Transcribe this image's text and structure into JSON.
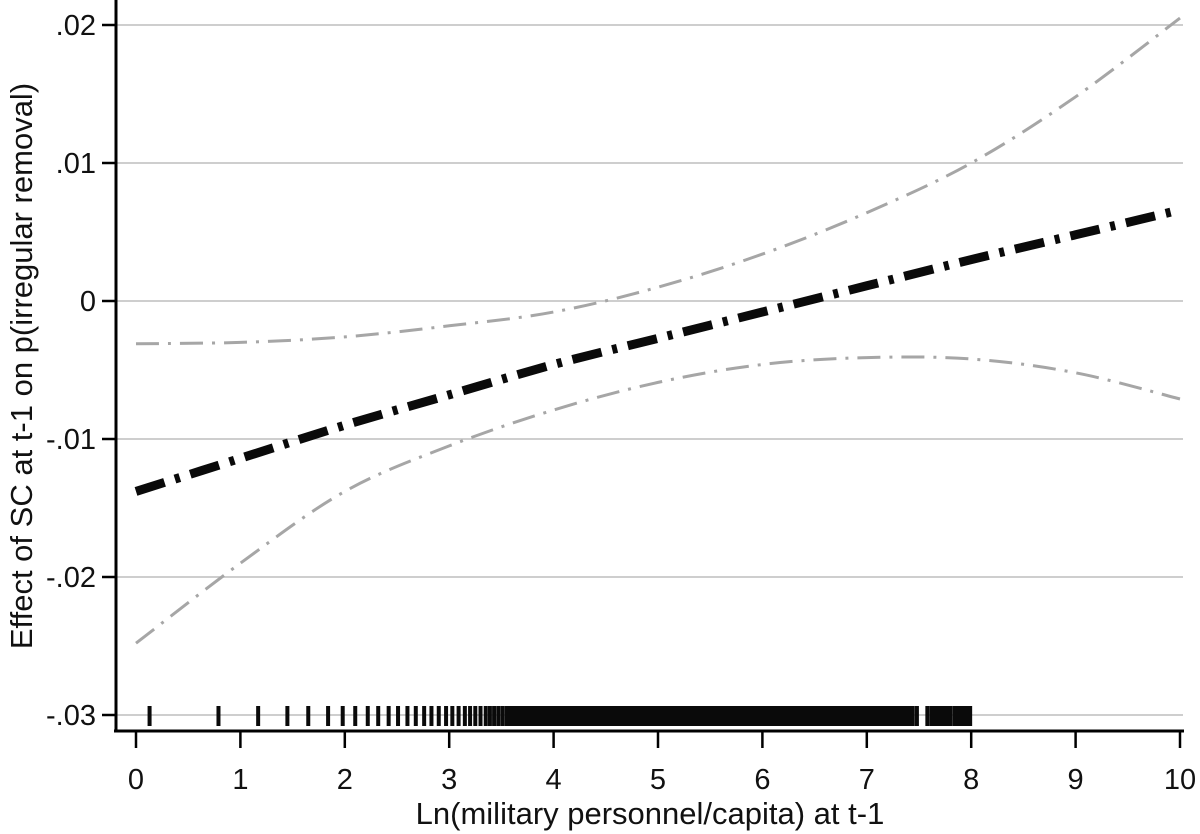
{
  "figure": {
    "background": "#ffffff",
    "axis_color": "#000000",
    "gridline_color": "#bdbdbd",
    "text_color": "#111111"
  },
  "chart_data": {
    "type": "line",
    "title": "",
    "xlabel": "Ln(military personnel/capita) at t-1",
    "ylabel": "Effect of SC at t-1 on p(irregular removal)",
    "xlim": [
      0,
      10
    ],
    "ylim": [
      -0.03,
      0.02
    ],
    "grid": true,
    "legend": "none",
    "x_tick_labels": [
      "0",
      "1",
      "2",
      "3",
      "4",
      "5",
      "6",
      "7",
      "8",
      "9",
      "10"
    ],
    "x_tick_values": [
      0,
      1,
      2,
      3,
      4,
      5,
      6,
      7,
      8,
      9,
      10
    ],
    "y_tick_labels": [
      ".02",
      ".01",
      "0",
      "-.01",
      "-.02",
      "-.03"
    ],
    "y_tick_values": [
      0.02,
      0.01,
      0,
      -0.01,
      -0.02,
      -0.03
    ],
    "x": [
      0,
      1,
      2,
      3,
      4,
      5,
      6,
      7,
      8,
      9,
      10
    ],
    "series": [
      {
        "name": "marginal-effect",
        "style": "thick-dash-dot",
        "color": "#0a0a0a",
        "width": 9,
        "dash": [
          30,
          11,
          5,
          11
        ],
        "values": [
          -0.0138,
          -0.0114,
          -0.009,
          -0.0068,
          -0.0046,
          -0.0027,
          -0.0008,
          0.0011,
          0.003,
          0.0048,
          0.0066
        ]
      },
      {
        "name": "ci-upper",
        "style": "dash-dot",
        "color": "#a6a6a6",
        "width": 3,
        "dash": [
          23,
          9,
          3,
          9
        ],
        "values": [
          -0.0031,
          -0.003,
          -0.0026,
          -0.0018,
          -0.0008,
          0.001,
          0.0034,
          0.0064,
          0.01,
          0.0148,
          0.0205
        ]
      },
      {
        "name": "ci-lower",
        "style": "dash-dot",
        "color": "#a6a6a6",
        "width": 3,
        "dash": [
          23,
          9,
          3,
          9
        ],
        "values": [
          -0.0248,
          -0.019,
          -0.0138,
          -0.0105,
          -0.0079,
          -0.0059,
          -0.0046,
          -0.0041,
          -0.0042,
          -0.0052,
          -0.0071
        ]
      }
    ],
    "rug": {
      "y_value": -0.03,
      "color": "#0a0a0a",
      "ticks": [
        0.13,
        0.79,
        1.17,
        1.45,
        1.65,
        1.84,
        1.98,
        2.1,
        2.22,
        2.32,
        2.42,
        2.51,
        2.6,
        2.68,
        2.76,
        2.83,
        2.9,
        2.97,
        3.03,
        3.09,
        3.15,
        3.2,
        3.25,
        3.3,
        3.35,
        3.39,
        3.43,
        3.47,
        3.51,
        3.55,
        3.58,
        3.61,
        3.64,
        3.67,
        7.48,
        7.58
      ],
      "bands": [
        [
          3.7,
          7.44
        ],
        [
          7.62,
          7.8
        ],
        [
          7.84,
          7.99
        ]
      ]
    }
  }
}
